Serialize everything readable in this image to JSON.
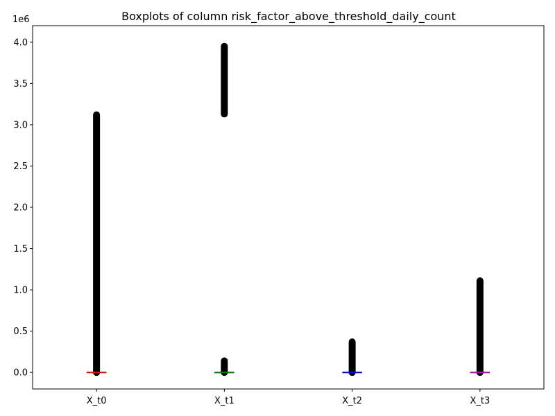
{
  "chart_data": {
    "type": "boxplot",
    "title": "Boxplots of column risk_factor_above_threshold_daily_count",
    "xlabel": "",
    "ylabel": "",
    "y_offset_label": "1e6",
    "ylim": [
      -200000,
      4200000
    ],
    "y_ticks": [
      0,
      500000,
      1000000,
      1500000,
      2000000,
      2500000,
      3000000,
      3500000,
      4000000
    ],
    "y_tick_labels": [
      "0.0",
      "0.5",
      "1.0",
      "1.5",
      "2.0",
      "2.5",
      "3.0",
      "3.5",
      "4.0"
    ],
    "categories": [
      "X_t0",
      "X_t1",
      "X_t2",
      "X_t3"
    ],
    "series": [
      {
        "category": "X_t0",
        "median": 0,
        "q1": 0,
        "q3": 0,
        "whisker_low": 0,
        "whisker_high": 0,
        "outlier_ranges": [
          [
            0,
            3120000
          ]
        ],
        "median_color": "#ff0000"
      },
      {
        "category": "X_t1",
        "median": 0,
        "q1": 0,
        "q3": 0,
        "whisker_low": 0,
        "whisker_high": 0,
        "outlier_ranges": [
          [
            0,
            140000
          ],
          [
            3130000,
            3950000
          ]
        ],
        "median_color": "#008000"
      },
      {
        "category": "X_t2",
        "median": 0,
        "q1": 0,
        "q3": 0,
        "whisker_low": 0,
        "whisker_high": 0,
        "outlier_ranges": [
          [
            0,
            370000
          ]
        ],
        "median_color": "#0000ff"
      },
      {
        "category": "X_t3",
        "median": 0,
        "q1": 0,
        "q3": 0,
        "whisker_low": 0,
        "whisker_high": 0,
        "outlier_ranges": [
          [
            0,
            1110000
          ]
        ],
        "median_color": "#c000c0"
      }
    ],
    "grid": false,
    "legend": "none"
  }
}
